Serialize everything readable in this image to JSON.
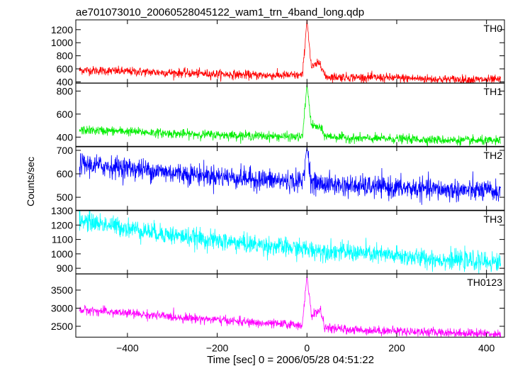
{
  "title": "ae701073010_20060528045122_wam1_trn_4band_long.qdp",
  "ylabel": "Counts/sec",
  "xlabel": "Time [sec] 0 = 2006/05/28 04:51:22",
  "chart_data": {
    "type": "line",
    "title": "ae701073010_20060528045122_wam1_trn_4band_long.qdp",
    "xlabel": "Time [sec] 0 = 2006/05/28 04:51:22",
    "ylabel": "Counts/sec",
    "xlim": [
      -515,
      440
    ],
    "x_ticks": [
      -400,
      -200,
      0,
      200,
      400
    ],
    "grid": false,
    "panels": [
      {
        "name": "TH0",
        "color": "#ff0000",
        "ylim": [
          380,
          1350
        ],
        "y_ticks": [
          400,
          600,
          800,
          1000,
          1200
        ],
        "series_points": [
          [
            -500,
            580
          ],
          [
            -400,
            560
          ],
          [
            -300,
            540
          ],
          [
            -200,
            520
          ],
          [
            -100,
            500
          ],
          [
            -10,
            500
          ],
          [
            0,
            1350
          ],
          [
            10,
            620
          ],
          [
            30,
            700
          ],
          [
            40,
            480
          ],
          [
            100,
            470
          ],
          [
            200,
            460
          ],
          [
            300,
            440
          ],
          [
            430,
            430
          ]
        ]
      },
      {
        "name": "TH1",
        "color": "#00ee00",
        "ylim": [
          320,
          870
        ],
        "y_ticks": [
          400,
          600,
          800
        ],
        "series_points": [
          [
            -500,
            460
          ],
          [
            -400,
            450
          ],
          [
            -300,
            430
          ],
          [
            -200,
            420
          ],
          [
            -100,
            410
          ],
          [
            -10,
            400
          ],
          [
            0,
            860
          ],
          [
            10,
            500
          ],
          [
            30,
            480
          ],
          [
            40,
            410
          ],
          [
            100,
            390
          ],
          [
            200,
            385
          ],
          [
            300,
            375
          ],
          [
            430,
            365
          ]
        ]
      },
      {
        "name": "TH2",
        "color": "#0000ff",
        "ylim": [
          445,
          715
        ],
        "y_ticks": [
          500,
          600,
          700
        ],
        "series_points": [
          [
            -500,
            640
          ],
          [
            -400,
            625
          ],
          [
            -300,
            605
          ],
          [
            -200,
            590
          ],
          [
            -100,
            575
          ],
          [
            -10,
            565
          ],
          [
            0,
            715
          ],
          [
            10,
            560
          ],
          [
            100,
            548
          ],
          [
            200,
            540
          ],
          [
            300,
            532
          ],
          [
            430,
            525
          ]
        ]
      },
      {
        "name": "TH3",
        "color": "#00ffff",
        "ylim": [
          860,
          1300
        ],
        "y_ticks": [
          900,
          1000,
          1100,
          1200,
          1300
        ],
        "series_points": [
          [
            -500,
            1230
          ],
          [
            -400,
            1180
          ],
          [
            -300,
            1130
          ],
          [
            -200,
            1090
          ],
          [
            -100,
            1060
          ],
          [
            0,
            1030
          ],
          [
            100,
            1010
          ],
          [
            200,
            985
          ],
          [
            300,
            960
          ],
          [
            430,
            940
          ]
        ]
      },
      {
        "name": "TH0123",
        "color": "#ff00ff",
        "ylim": [
          2200,
          3950
        ],
        "y_ticks": [
          2500,
          3000,
          3500
        ],
        "series_points": [
          [
            -500,
            2950
          ],
          [
            -400,
            2860
          ],
          [
            -300,
            2760
          ],
          [
            -200,
            2680
          ],
          [
            -100,
            2580
          ],
          [
            -10,
            2540
          ],
          [
            0,
            3900
          ],
          [
            10,
            2800
          ],
          [
            30,
            2950
          ],
          [
            40,
            2450
          ],
          [
            100,
            2400
          ],
          [
            200,
            2370
          ],
          [
            300,
            2330
          ],
          [
            430,
            2290
          ]
        ]
      }
    ]
  }
}
